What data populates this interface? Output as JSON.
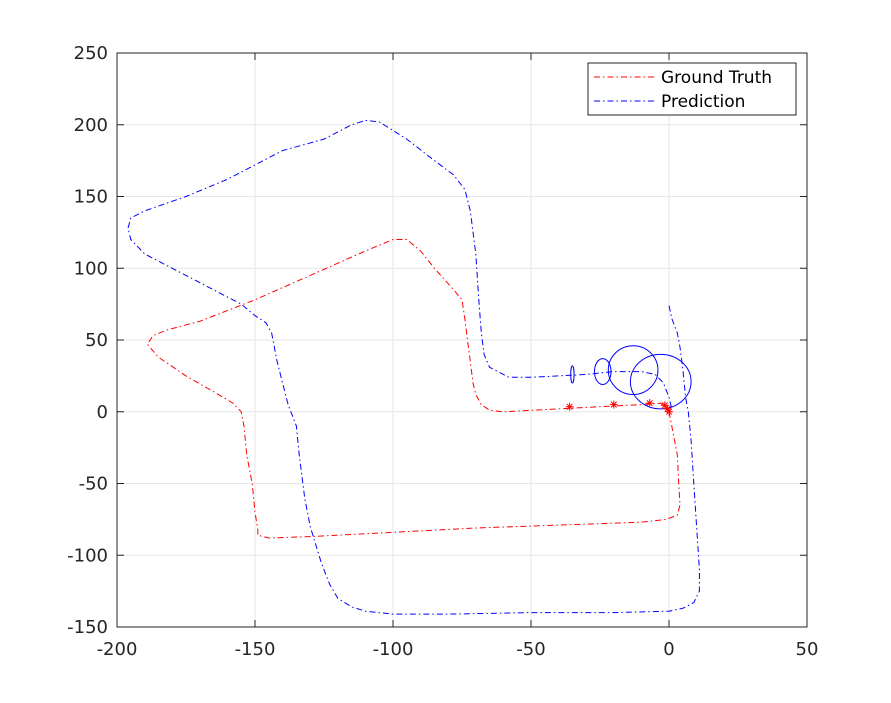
{
  "chart_data": {
    "type": "line",
    "title": "",
    "xlabel": "",
    "ylabel": "",
    "xlim": [
      -200,
      50
    ],
    "ylim": [
      -150,
      250
    ],
    "xticks": [
      -200,
      -150,
      -100,
      -50,
      0,
      50
    ],
    "yticks": [
      -150,
      -100,
      -50,
      0,
      50,
      100,
      150,
      200,
      250
    ],
    "xtick_labels": [
      "-200",
      "-150",
      "-100",
      "-50",
      "0",
      "50"
    ],
    "ytick_labels": [
      "-150",
      "-100",
      "-50",
      "0",
      "50",
      "100",
      "150",
      "200",
      "250"
    ],
    "grid": true,
    "legend_position": "top-right",
    "series": [
      {
        "name": "Ground Truth",
        "color": "#ff0000",
        "dash": "dash-dot",
        "points": [
          [
            0,
            0
          ],
          [
            1,
            -10
          ],
          [
            3,
            -30
          ],
          [
            3.5,
            -50
          ],
          [
            4,
            -65
          ],
          [
            3,
            -72
          ],
          [
            -1,
            -75
          ],
          [
            -10,
            -77
          ],
          [
            -40,
            -79
          ],
          [
            -70,
            -81
          ],
          [
            -100,
            -84
          ],
          [
            -130,
            -87
          ],
          [
            -145,
            -88
          ],
          [
            -149,
            -86
          ],
          [
            -149,
            -82
          ],
          [
            -150,
            -70
          ],
          [
            -151,
            -50
          ],
          [
            -153,
            -30
          ],
          [
            -154,
            -10
          ],
          [
            -155,
            0
          ],
          [
            -158,
            6
          ],
          [
            -165,
            14
          ],
          [
            -175,
            25
          ],
          [
            -185,
            38
          ],
          [
            -189,
            47
          ],
          [
            -187,
            53
          ],
          [
            -182,
            57
          ],
          [
            -170,
            63
          ],
          [
            -150,
            78
          ],
          [
            -130,
            95
          ],
          [
            -110,
            112
          ],
          [
            -100,
            120
          ],
          [
            -95,
            120
          ],
          [
            -90,
            112
          ],
          [
            -85,
            100
          ],
          [
            -78,
            85
          ],
          [
            -75,
            78
          ],
          [
            -74,
            65
          ],
          [
            -73,
            50
          ],
          [
            -72,
            35
          ],
          [
            -71,
            20
          ],
          [
            -70,
            12
          ],
          [
            -68,
            5
          ],
          [
            -65,
            1
          ],
          [
            -60,
            0
          ],
          [
            -50,
            1
          ],
          [
            -40,
            2
          ],
          [
            -30,
            3
          ],
          [
            -20,
            4
          ],
          [
            -10,
            5
          ],
          [
            -3,
            6
          ],
          [
            -1,
            3
          ],
          [
            0,
            0
          ]
        ]
      },
      {
        "name": "Prediction",
        "color": "#0000ff",
        "dash": "dash-dot",
        "points": [
          [
            0,
            74
          ],
          [
            1,
            65
          ],
          [
            3,
            55
          ],
          [
            4,
            45
          ],
          [
            5,
            30
          ],
          [
            6,
            10
          ],
          [
            7,
            0
          ],
          [
            8,
            -20
          ],
          [
            9,
            -50
          ],
          [
            10,
            -80
          ],
          [
            11,
            -110
          ],
          [
            11,
            -125
          ],
          [
            9,
            -133
          ],
          [
            5,
            -137
          ],
          [
            0,
            -139
          ],
          [
            -20,
            -140
          ],
          [
            -50,
            -140
          ],
          [
            -80,
            -141
          ],
          [
            -100,
            -141
          ],
          [
            -110,
            -139
          ],
          [
            -115,
            -136
          ],
          [
            -120,
            -130
          ],
          [
            -123,
            -120
          ],
          [
            -126,
            -105
          ],
          [
            -130,
            -80
          ],
          [
            -132,
            -60
          ],
          [
            -134,
            -30
          ],
          [
            -135,
            -10
          ],
          [
            -138,
            5
          ],
          [
            -140,
            20
          ],
          [
            -142,
            35
          ],
          [
            -144,
            55
          ],
          [
            -146,
            62
          ],
          [
            -150,
            67
          ],
          [
            -155,
            75
          ],
          [
            -160,
            80
          ],
          [
            -170,
            90
          ],
          [
            -180,
            100
          ],
          [
            -190,
            110
          ],
          [
            -195,
            120
          ],
          [
            -196,
            128
          ],
          [
            -195,
            135
          ],
          [
            -190,
            140
          ],
          [
            -175,
            150
          ],
          [
            -160,
            162
          ],
          [
            -150,
            172
          ],
          [
            -140,
            182
          ],
          [
            -125,
            190
          ],
          [
            -115,
            200
          ],
          [
            -110,
            203
          ],
          [
            -105,
            202
          ],
          [
            -95,
            190
          ],
          [
            -85,
            175
          ],
          [
            -78,
            165
          ],
          [
            -74,
            155
          ],
          [
            -72,
            140
          ],
          [
            -70,
            110
          ],
          [
            -69,
            80
          ],
          [
            -68,
            55
          ],
          [
            -67,
            40
          ],
          [
            -65,
            31
          ],
          [
            -58,
            24
          ],
          [
            -50,
            24
          ],
          [
            -40,
            25
          ],
          [
            -30,
            26
          ],
          [
            -20,
            28
          ],
          [
            -10,
            28
          ],
          [
            -5,
            26
          ],
          [
            -2,
            20
          ],
          [
            0,
            10
          ],
          [
            1,
            2
          ]
        ]
      }
    ],
    "markers": [
      [
        -36,
        3.5
      ],
      [
        -20,
        5
      ],
      [
        -7,
        6
      ],
      [
        -1.5,
        4.5
      ],
      [
        -0.5,
        2
      ],
      [
        0,
        0
      ]
    ],
    "ellipses": [
      {
        "cx": -35,
        "cy": 26,
        "rx": 0.6,
        "ry": 6
      },
      {
        "cx": -24,
        "cy": 28,
        "rx": 3,
        "ry": 9
      },
      {
        "cx": -13,
        "cy": 29,
        "rx": 9,
        "ry": 17
      },
      {
        "cx": -3,
        "cy": 21,
        "rx": 11,
        "ry": 19
      }
    ]
  }
}
